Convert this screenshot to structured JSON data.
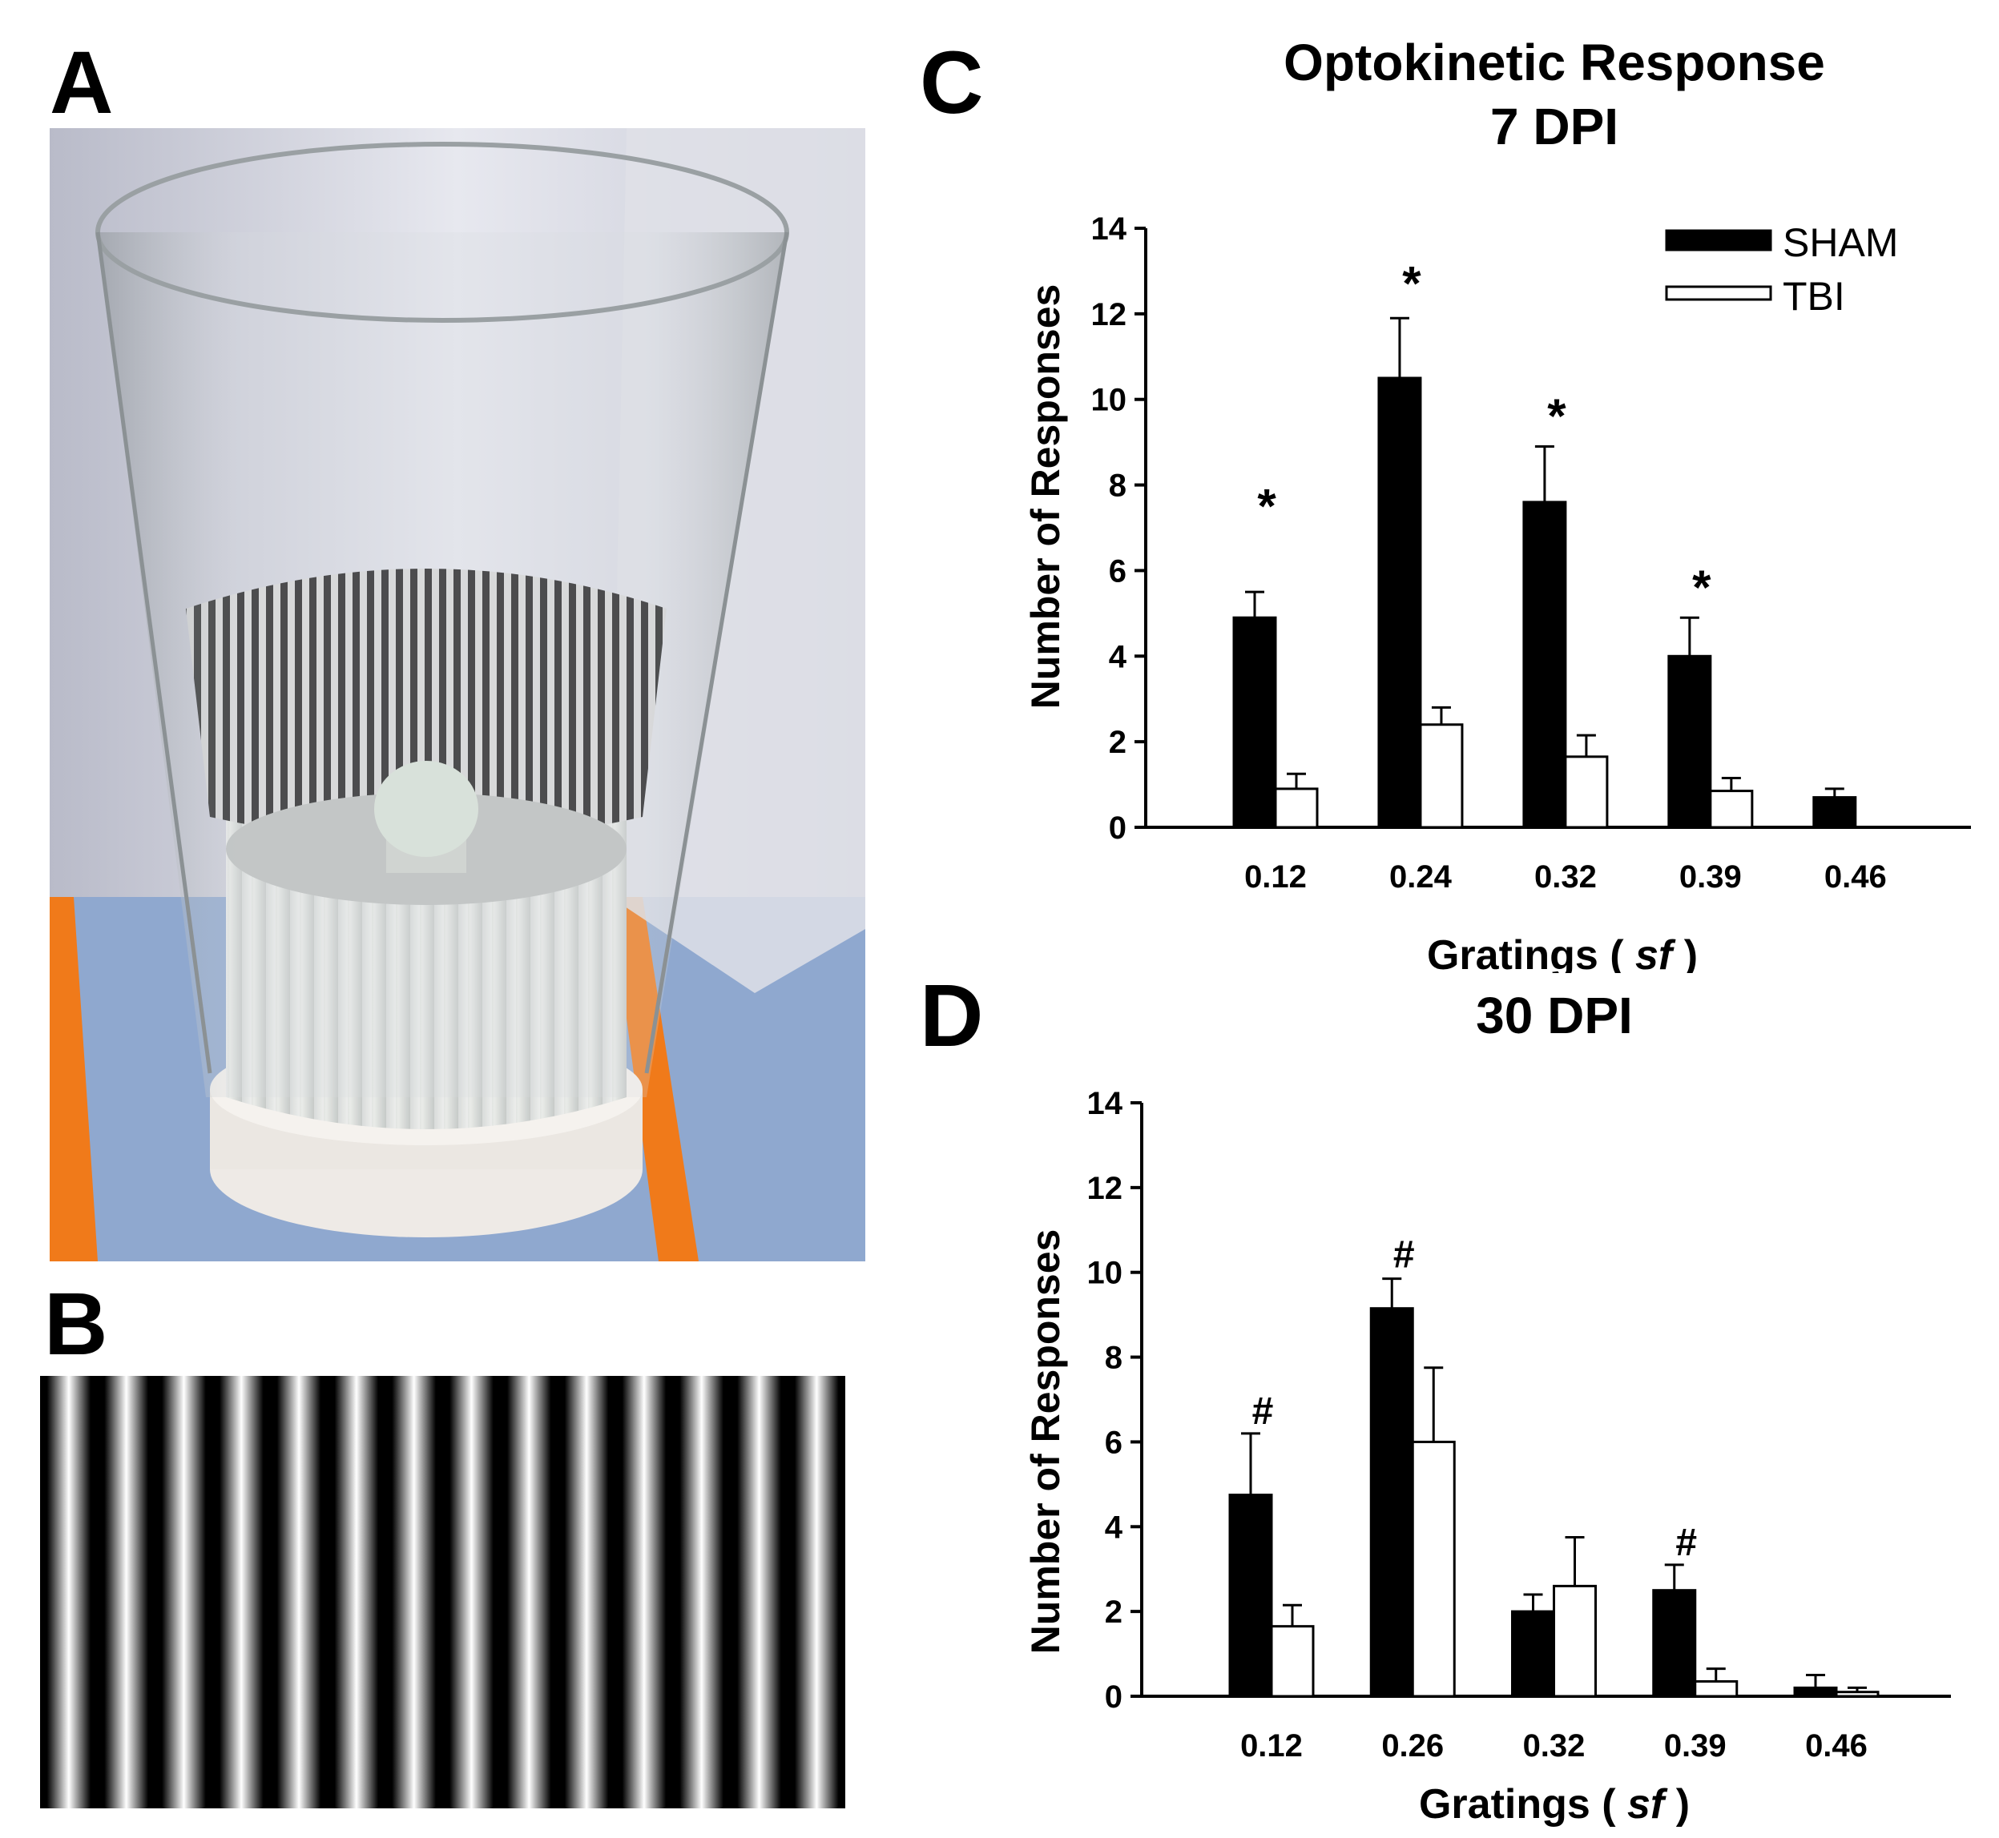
{
  "panels": {
    "a": "A",
    "b": "B",
    "c": "C",
    "d": "D"
  },
  "colors": {
    "sham": "#000000",
    "tbi": "#ffffff",
    "photo_background": "#d9dbe4",
    "bench_mat": "#8fa8cf",
    "tape": "#f07a1a"
  },
  "legend": {
    "sham": "SHAM",
    "tbi": "TBI"
  },
  "chart_data": [
    {
      "type": "bar",
      "title": "Optokinetic Response",
      "subtitle": "7 DPI",
      "xlabel_prefix": "Gratings ( ",
      "xlabel_italic": "sf",
      "xlabel_suffix": " )",
      "ylabel": "Number of Responses",
      "ylim": [
        0,
        14
      ],
      "yticks": [
        0,
        2,
        4,
        6,
        8,
        10,
        12,
        14
      ],
      "categories": [
        "0.12",
        "0.24",
        "0.32",
        "0.39",
        "0.46"
      ],
      "series": [
        {
          "name": "SHAM",
          "values": [
            4.9,
            10.5,
            7.6,
            4.0,
            0.7
          ],
          "errors": [
            0.6,
            1.4,
            1.3,
            0.9,
            0.2
          ]
        },
        {
          "name": "TBI",
          "values": [
            0.9,
            2.4,
            1.65,
            0.85,
            0
          ],
          "errors": [
            0.35,
            0.4,
            0.5,
            0.3,
            0
          ]
        }
      ],
      "annotations": [
        {
          "category": "0.12",
          "text": "*",
          "y": 7.5
        },
        {
          "category": "0.24",
          "text": "*",
          "y": 12.7
        },
        {
          "category": "0.32",
          "text": "*",
          "y": 9.6
        },
        {
          "category": "0.39",
          "text": "*",
          "y": 5.6
        }
      ],
      "legend_position": "top-right"
    },
    {
      "type": "bar",
      "title": "30 DPI",
      "xlabel_prefix": "Gratings ( ",
      "xlabel_italic": "sf",
      "xlabel_suffix": " )",
      "ylabel": "Number of Responses",
      "ylim": [
        0,
        14
      ],
      "yticks": [
        0,
        2,
        4,
        6,
        8,
        10,
        12,
        14
      ],
      "categories": [
        "0.12",
        "0.26",
        "0.32",
        "0.39",
        "0.46"
      ],
      "series": [
        {
          "name": "SHAM",
          "values": [
            4.75,
            9.15,
            2.0,
            2.5,
            0.2
          ],
          "errors": [
            1.45,
            0.7,
            0.4,
            0.6,
            0.3
          ]
        },
        {
          "name": "TBI",
          "values": [
            1.65,
            6.0,
            2.6,
            0.35,
            0.1
          ],
          "errors": [
            0.5,
            1.75,
            1.15,
            0.3,
            0.1
          ]
        }
      ],
      "annotations": [
        {
          "category": "0.12",
          "text": "#",
          "y": 6.8
        },
        {
          "category": "0.26",
          "text": "#",
          "y": 10.5
        },
        {
          "category": "0.39",
          "text": "#",
          "y": 3.7
        }
      ]
    }
  ]
}
